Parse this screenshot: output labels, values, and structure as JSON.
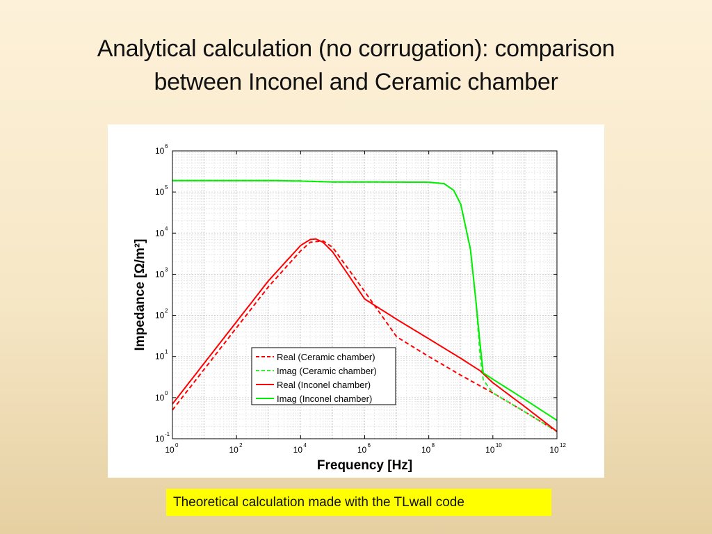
{
  "slide": {
    "title_line1": "Analytical calculation  (no corrugation): comparison",
    "title_line2": "between Inconel and Ceramic chamber",
    "note": "Theoretical calculation made with the TLwall code"
  },
  "chart_data": {
    "type": "line",
    "xscale": "log",
    "yscale": "log",
    "xlabel": "Frequency [Hz]",
    "ylabel": "Impedance [Ω/m²]",
    "xlim": [
      1,
      1000000000000
    ],
    "ylim": [
      0.1,
      1000000
    ],
    "x_ticks": [
      {
        "base": "10",
        "exp": "0"
      },
      {
        "base": "10",
        "exp": "2"
      },
      {
        "base": "10",
        "exp": "4"
      },
      {
        "base": "10",
        "exp": "6"
      },
      {
        "base": "10",
        "exp": "8"
      },
      {
        "base": "10",
        "exp": "10"
      },
      {
        "base": "10",
        "exp": "12"
      }
    ],
    "y_ticks": [
      {
        "base": "10",
        "exp": "-1"
      },
      {
        "base": "10",
        "exp": "0"
      },
      {
        "base": "10",
        "exp": "1"
      },
      {
        "base": "10",
        "exp": "2"
      },
      {
        "base": "10",
        "exp": "3"
      },
      {
        "base": "10",
        "exp": "4"
      },
      {
        "base": "10",
        "exp": "5"
      },
      {
        "base": "10",
        "exp": "6"
      }
    ],
    "grid": true,
    "legend_position": "lower-center",
    "series": [
      {
        "name": "Real (Ceramic chamber)",
        "color": "#ff0000",
        "dash": "dashed",
        "x": [
          1,
          10,
          100,
          1000,
          10000,
          20000,
          50000,
          100000,
          1000000,
          10000000,
          100000000,
          1000000000,
          10000000000,
          100000000000,
          1000000000000
        ],
        "y": [
          0.5,
          5,
          50,
          500,
          3700,
          6000,
          6500,
          4500,
          380,
          30,
          10,
          3.5,
          1.3,
          0.45,
          0.15
        ]
      },
      {
        "name": "Imag (Ceramic chamber)",
        "color": "#33ee33",
        "dash": "dashed",
        "x": [
          1,
          10,
          1000,
          10000,
          100000,
          1000000,
          100000000,
          300000000,
          600000000,
          1000000000,
          2000000000,
          3000000000,
          4000000000,
          5000000000,
          10000000000,
          100000000000,
          1000000000000
        ],
        "y": [
          190000,
          190000,
          190000,
          185000,
          175000,
          175000,
          173000,
          160000,
          110000,
          50000,
          4000,
          200,
          10,
          2.7,
          1.3,
          0.45,
          0.15
        ]
      },
      {
        "name": "Real (Inconel chamber)",
        "color": "#ff0000",
        "dash": "solid",
        "x": [
          1,
          10,
          100,
          1000,
          10000,
          20000,
          30000,
          50000,
          100000,
          1000000,
          10000000,
          100000000,
          1000000000,
          4000000000,
          10000000000,
          100000000000,
          1000000000000
        ],
        "y": [
          0.7,
          7,
          70,
          700,
          5000,
          7000,
          7200,
          6000,
          3500,
          250,
          80,
          27,
          9,
          4.5,
          2.3,
          0.6,
          0.15
        ]
      },
      {
        "name": "Imag (Inconel chamber)",
        "color": "#00ee00",
        "dash": "solid",
        "x": [
          1,
          10,
          1000,
          10000,
          100000,
          1000000,
          100000000,
          300000000,
          600000000,
          1000000000,
          2000000000,
          3000000000,
          4000000000,
          5000000000,
          10000000000,
          100000000000,
          1000000000000
        ],
        "y": [
          190000,
          190000,
          190000,
          185000,
          175000,
          175000,
          173000,
          160000,
          110000,
          50000,
          4000,
          200,
          20,
          4,
          2.8,
          0.9,
          0.28
        ]
      }
    ]
  }
}
